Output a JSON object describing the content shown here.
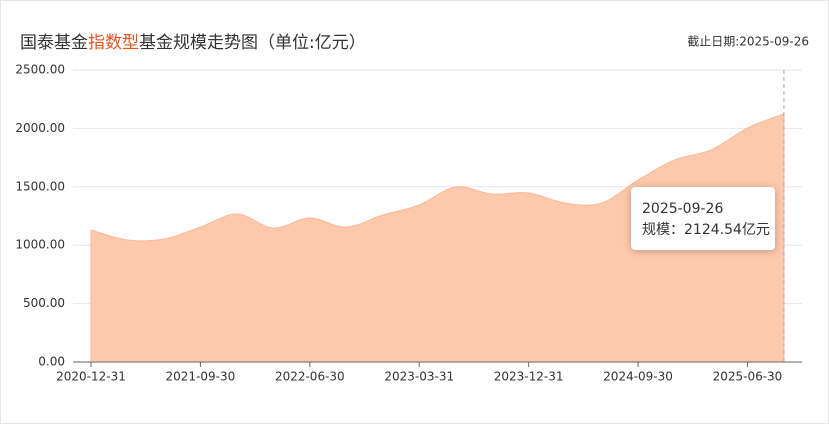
{
  "chart_data": {
    "type": "area",
    "title_parts": [
      "国泰基金",
      "指数型",
      "基金规模走势图（单位:亿元）"
    ],
    "title_highlight_color": "#e8541e",
    "date_note": "截止日期:2025-09-26",
    "categories": [
      "2020-12-31",
      null,
      null,
      "2021-09-30",
      null,
      null,
      "2022-06-30",
      null,
      null,
      "2023-03-31",
      null,
      null,
      "2023-12-31",
      null,
      null,
      "2024-09-30",
      null,
      null,
      "2025-06-30",
      null
    ],
    "values": [
      1130,
      1045,
      1053,
      1155,
      1267,
      1147,
      1233,
      1155,
      1258,
      1344,
      1498,
      1438,
      1447,
      1361,
      1361,
      1558,
      1730,
      1815,
      2003,
      2124.54
    ],
    "color": "#fdc9ad",
    "ylim": [
      0,
      2500
    ],
    "yticks": [
      {
        "value": 0,
        "label": "0.00"
      },
      {
        "value": 500,
        "label": "500.00"
      },
      {
        "value": 1000,
        "label": "1000.00"
      },
      {
        "value": 1500,
        "label": "1500.00"
      },
      {
        "value": 2000,
        "label": "2000.00"
      },
      {
        "value": 2500,
        "label": "2500.00"
      }
    ],
    "grid": true,
    "tooltip": {
      "title": "2025-09-26",
      "text": "规模：2124.54亿元"
    }
  }
}
